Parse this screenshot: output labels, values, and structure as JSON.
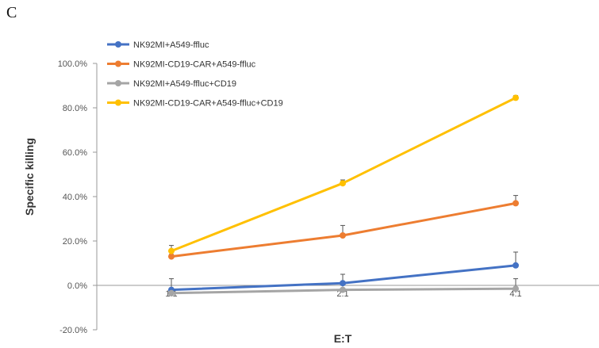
{
  "panel_label": "C",
  "chart_data": {
    "type": "line",
    "title": "",
    "xlabel": "E:T",
    "ylabel": "Specific killing",
    "categories": [
      "1:1",
      "2:1",
      "4:1"
    ],
    "y_tick_labels": [
      "-20.0%",
      "0.0%",
      "20.0%",
      "40.0%",
      "60.0%",
      "80.0%",
      "100.0%"
    ],
    "y_ticks": [
      -20,
      0,
      20,
      40,
      60,
      80,
      100
    ],
    "ylim": [
      -20,
      100
    ],
    "grid": false,
    "legend_position": "top-left",
    "series": [
      {
        "name": "NK92MI+A549-ffluc",
        "color": "#4472C4",
        "values": [
          -2.0,
          1.0,
          9.0
        ],
        "errors": [
          5.0,
          4.0,
          6.0
        ]
      },
      {
        "name": "NK92MI-CD19-CAR+A549-ffluc",
        "color": "#ED7D31",
        "values": [
          13.0,
          22.5,
          37.0
        ],
        "errors": [
          1.0,
          4.5,
          3.5
        ]
      },
      {
        "name": "NK92MI+A549-ffluc+CD19",
        "color": "#A5A5A5",
        "values": [
          -3.5,
          -2.0,
          -1.5
        ],
        "errors": [
          0.5,
          0.5,
          4.5
        ]
      },
      {
        "name": "NK92MI-CD19-CAR+A549-ffluc+CD19",
        "color": "#FFC000",
        "values": [
          15.5,
          46.0,
          84.5
        ],
        "errors": [
          2.5,
          1.5,
          1.0
        ]
      }
    ]
  }
}
